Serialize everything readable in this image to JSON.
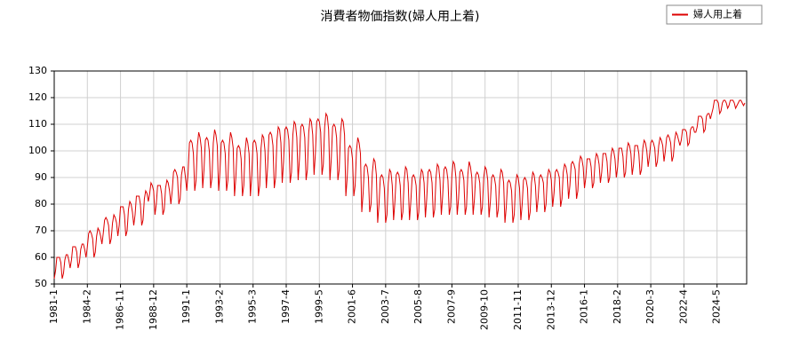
{
  "chart_data": {
    "type": "line",
    "title": "消費者物価指数(婦人用上着)",
    "categories": [
      "1981-1",
      null,
      null,
      null,
      null,
      null,
      null,
      null,
      null,
      null,
      null,
      null,
      null,
      null,
      null,
      null,
      null,
      null,
      null,
      null,
      null,
      null,
      null,
      null,
      null,
      "1984-2",
      null,
      null,
      null,
      null,
      null,
      null,
      null,
      null,
      null,
      null,
      null,
      null,
      null,
      null,
      null,
      null,
      null,
      null,
      null,
      null,
      null,
      null,
      null,
      null,
      "1986-11",
      null,
      null,
      null,
      null,
      null,
      null,
      null,
      null,
      null,
      null,
      null,
      null,
      null,
      null,
      null,
      null,
      null,
      null,
      null,
      null,
      null,
      null,
      null,
      null,
      "1988-12",
      null,
      null,
      null,
      null,
      null,
      null,
      null,
      null,
      null,
      null,
      null,
      null,
      null,
      null,
      null,
      null,
      null,
      null,
      null,
      null,
      null,
      null,
      null,
      null,
      "1991-1",
      null,
      null,
      null,
      null,
      null,
      null,
      null,
      null,
      null,
      null,
      null,
      null,
      null,
      null,
      null,
      null,
      null,
      null,
      null,
      null,
      null,
      null,
      null,
      null,
      "1993-2",
      null,
      null,
      null,
      null,
      null,
      null,
      null,
      null,
      null,
      null,
      null,
      null,
      null,
      null,
      null,
      null,
      null,
      null,
      null,
      null,
      null,
      null,
      null,
      null,
      "1995-3",
      null,
      null,
      null,
      null,
      null,
      null,
      null,
      null,
      null,
      null,
      null,
      null,
      null,
      null,
      null,
      null,
      null,
      null,
      null,
      null,
      null,
      null,
      null,
      null,
      "1997-4",
      null,
      null,
      null,
      null,
      null,
      null,
      null,
      null,
      null,
      null,
      null,
      null,
      null,
      null,
      null,
      null,
      null,
      null,
      null,
      null,
      null,
      null,
      null,
      null,
      "1999-5",
      null,
      null,
      null,
      null,
      null,
      null,
      null,
      null,
      null,
      null,
      null,
      null,
      null,
      null,
      null,
      null,
      null,
      null,
      null,
      null,
      null,
      null,
      null,
      null,
      "2001-6",
      null,
      null,
      null,
      null,
      null,
      null,
      null,
      null,
      null,
      null,
      null,
      null,
      null,
      null,
      null,
      null,
      null,
      null,
      null,
      null,
      null,
      null,
      null,
      null,
      "2003-7",
      null,
      null,
      null,
      null,
      null,
      null,
      null,
      null,
      null,
      null,
      null,
      null,
      null,
      null,
      null,
      null,
      null,
      null,
      null,
      null,
      null,
      null,
      null,
      null,
      "2005-8",
      null,
      null,
      null,
      null,
      null,
      null,
      null,
      null,
      null,
      null,
      null,
      null,
      null,
      null,
      null,
      null,
      null,
      null,
      null,
      null,
      null,
      null,
      null,
      null,
      "2007-9",
      null,
      null,
      null,
      null,
      null,
      null,
      null,
      null,
      null,
      null,
      null,
      null,
      null,
      null,
      null,
      null,
      null,
      null,
      null,
      null,
      null,
      null,
      null,
      null,
      "2009-10",
      null,
      null,
      null,
      null,
      null,
      null,
      null,
      null,
      null,
      null,
      null,
      null,
      null,
      null,
      null,
      null,
      null,
      null,
      null,
      null,
      null,
      null,
      null,
      null,
      "2011-11",
      null,
      null,
      null,
      null,
      null,
      null,
      null,
      null,
      null,
      null,
      null,
      null,
      null,
      null,
      null,
      null,
      null,
      null,
      null,
      null,
      null,
      null,
      null,
      null,
      "2013-12",
      null,
      null,
      null,
      null,
      null,
      null,
      null,
      null,
      null,
      null,
      null,
      null,
      null,
      null,
      null,
      null,
      null,
      null,
      null,
      null,
      null,
      null,
      null,
      null,
      "2016-1",
      null,
      null,
      null,
      null,
      null,
      null,
      null,
      null,
      null,
      null,
      null,
      null,
      null,
      null,
      null,
      null,
      null,
      null,
      null,
      null,
      null,
      null,
      null,
      null,
      "2018-2",
      null,
      null,
      null,
      null,
      null,
      null,
      null,
      null,
      null,
      null,
      null,
      null,
      null,
      null,
      null,
      null,
      null,
      null,
      null,
      null,
      null,
      null,
      null,
      null,
      "2020-3",
      null,
      null,
      null,
      null,
      null,
      null,
      null,
      null,
      null,
      null,
      null,
      null,
      null,
      null,
      null,
      null,
      null,
      null,
      null,
      null,
      null,
      null,
      null,
      null,
      "2022-4",
      null,
      null,
      null,
      null,
      null,
      null,
      null,
      null,
      null,
      null,
      null,
      null,
      null,
      null,
      null,
      null,
      null,
      null,
      null,
      null,
      null,
      null,
      null,
      null,
      "2024-5",
      null,
      null,
      null,
      null,
      null,
      null,
      null,
      null,
      null,
      null,
      null,
      null,
      null,
      null,
      null,
      null,
      null,
      null,
      null,
      null,
      null
    ],
    "series": [
      {
        "name": "婦人用上着",
        "color": "#dd0000",
        "values": [
          52,
          55,
          60,
          60,
          60,
          58,
          52,
          54,
          59,
          61,
          61,
          59,
          56,
          59,
          64,
          64,
          64,
          62,
          56,
          58,
          63,
          65,
          65,
          63,
          60,
          64,
          69,
          70,
          69,
          67,
          60,
          62,
          68,
          71,
          70,
          68,
          65,
          69,
          74,
          75,
          74,
          72,
          65,
          67,
          73,
          76,
          75,
          73,
          68,
          72,
          79,
          79,
          79,
          76,
          68,
          70,
          78,
          81,
          80,
          77,
          72,
          76,
          83,
          83,
          83,
          80,
          72,
          74,
          82,
          85,
          84,
          81,
          84,
          88,
          87,
          85,
          76,
          80,
          87,
          87,
          87,
          84,
          76,
          78,
          86,
          89,
          88,
          85,
          80,
          85,
          92,
          93,
          92,
          90,
          80,
          82,
          91,
          94,
          94,
          90,
          85,
          92,
          103,
          104,
          103,
          99,
          85,
          89,
          102,
          107,
          105,
          101,
          86,
          93,
          104,
          105,
          104,
          100,
          86,
          90,
          103,
          108,
          106,
          102,
          85,
          92,
          103,
          104,
          103,
          99,
          85,
          89,
          102,
          107,
          105,
          101,
          83,
          90,
          101,
          102,
          101,
          97,
          83,
          87,
          100,
          105,
          103,
          99,
          83,
          91,
          103,
          104,
          103,
          99,
          83,
          87,
          101,
          106,
          105,
          100,
          86,
          94,
          106,
          107,
          106,
          102,
          86,
          90,
          104,
          109,
          108,
          103,
          88,
          96,
          108,
          109,
          108,
          104,
          88,
          92,
          106,
          111,
          110,
          105,
          89,
          97,
          109,
          110,
          109,
          105,
          89,
          93,
          107,
          112,
          111,
          106,
          91,
          99,
          111,
          112,
          111,
          107,
          91,
          95,
          109,
          114,
          113,
          108,
          89,
          97,
          109,
          110,
          109,
          105,
          89,
          93,
          107,
          112,
          111,
          106,
          83,
          90,
          101,
          102,
          101,
          97,
          83,
          87,
          100,
          105,
          103,
          99,
          77,
          84,
          94,
          95,
          94,
          90,
          77,
          80,
          92,
          97,
          96,
          91,
          73,
          80,
          90,
          91,
          90,
          86,
          73,
          76,
          88,
          93,
          92,
          87,
          74,
          81,
          91,
          92,
          91,
          87,
          74,
          77,
          89,
          94,
          93,
          88,
          74,
          81,
          90,
          91,
          90,
          87,
          74,
          77,
          89,
          93,
          92,
          88,
          75,
          82,
          92,
          93,
          92,
          88,
          75,
          78,
          90,
          95,
          94,
          89,
          76,
          83,
          93,
          94,
          93,
          89,
          76,
          79,
          91,
          96,
          95,
          90,
          76,
          82,
          92,
          93,
          92,
          89,
          76,
          79,
          91,
          96,
          94,
          90,
          76,
          82,
          91,
          92,
          91,
          88,
          76,
          79,
          90,
          94,
          93,
          89,
          75,
          81,
          90,
          91,
          90,
          87,
          75,
          78,
          89,
          93,
          92,
          88,
          73,
          79,
          88,
          89,
          88,
          85,
          73,
          76,
          87,
          91,
          90,
          86,
          74,
          80,
          89,
          90,
          89,
          86,
          74,
          77,
          88,
          92,
          91,
          87,
          77,
          82,
          90,
          91,
          90,
          88,
          77,
          80,
          90,
          93,
          92,
          89,
          79,
          84,
          92,
          93,
          92,
          90,
          79,
          82,
          92,
          95,
          94,
          91,
          82,
          87,
          95,
          96,
          95,
          93,
          82,
          85,
          95,
          98,
          97,
          94,
          86,
          90,
          97,
          97,
          97,
          94,
          86,
          88,
          96,
          99,
          98,
          95,
          88,
          92,
          99,
          99,
          99,
          96,
          88,
          90,
          98,
          101,
          100,
          97,
          90,
          94,
          101,
          101,
          101,
          98,
          90,
          92,
          100,
          103,
          102,
          99,
          91,
          95,
          102,
          102,
          102,
          99,
          91,
          93,
          101,
          104,
          103,
          100,
          94,
          98,
          103,
          104,
          103,
          101,
          94,
          96,
          102,
          105,
          104,
          102,
          96,
          100,
          105,
          106,
          105,
          103,
          96,
          98,
          104,
          107,
          106,
          104,
          102,
          104,
          108,
          108,
          108,
          107,
          102,
          103,
          108,
          109,
          109,
          107,
          107,
          109,
          113,
          113,
          113,
          112,
          107,
          108,
          113,
          114,
          114,
          112,
          114,
          116,
          119,
          119,
          119,
          118,
          114,
          115,
          118,
          119,
          119,
          118,
          116,
          117,
          119,
          119,
          119,
          118,
          116,
          117,
          118,
          119,
          119,
          118,
          117,
          118
        ]
      }
    ],
    "ylim": [
      50,
      130
    ],
    "yticks": [
      50,
      60,
      70,
      80,
      90,
      100,
      110,
      120,
      130
    ],
    "grid": true,
    "legend": "top-right"
  }
}
